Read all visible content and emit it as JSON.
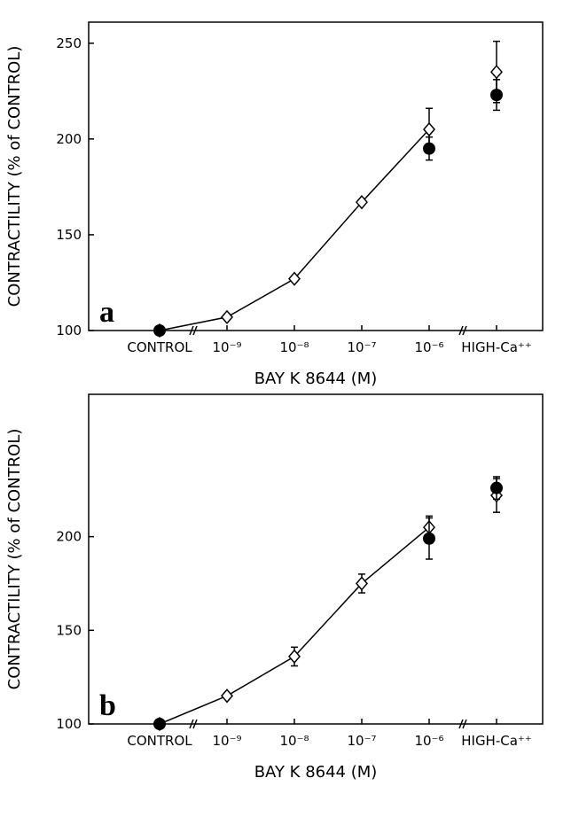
{
  "chart_data": [
    {
      "type": "line",
      "panel_label": "a",
      "x_label": "BAY K 8644 (M)",
      "y_label": "CONTRACTILITY (% of CONTROL)",
      "categories": [
        "CONTROL",
        "10⁻⁹",
        "10⁻⁸",
        "10⁻⁷",
        "10⁻⁶",
        "HIGH-Ca⁺⁺"
      ],
      "ylim": [
        100,
        261
      ],
      "yticks": [
        100,
        150,
        200,
        250
      ],
      "series": [
        {
          "marker": "diamond",
          "color": "#000000",
          "values": [
            100,
            107,
            127,
            167,
            205,
            235
          ],
          "errors": [
            null,
            null,
            null,
            null,
            11,
            16
          ]
        },
        {
          "marker": "circle",
          "color": "#000000",
          "values": [
            100,
            null,
            null,
            null,
            195,
            223
          ],
          "errors": [
            null,
            null,
            null,
            null,
            6,
            8
          ]
        }
      ]
    },
    {
      "type": "line",
      "panel_label": "b",
      "x_label": "BAY K 8644 (M)",
      "y_label": "CONTRACTILITY (% of CONTROL)",
      "categories": [
        "CONTROL",
        "10⁻⁹",
        "10⁻⁸",
        "10⁻⁷",
        "10⁻⁶",
        "HIGH-Ca⁺⁺"
      ],
      "ylim": [
        100,
        276
      ],
      "yticks": [
        100,
        150,
        200
      ],
      "series": [
        {
          "marker": "diamond",
          "color": "#000000",
          "values": [
            100,
            115,
            136,
            175,
            205,
            222
          ],
          "errors": [
            null,
            null,
            5,
            5,
            6,
            9
          ]
        },
        {
          "marker": "circle",
          "color": "#000000",
          "values": [
            100,
            null,
            null,
            null,
            199,
            226
          ],
          "errors": [
            null,
            null,
            null,
            null,
            11,
            6
          ]
        }
      ]
    }
  ]
}
